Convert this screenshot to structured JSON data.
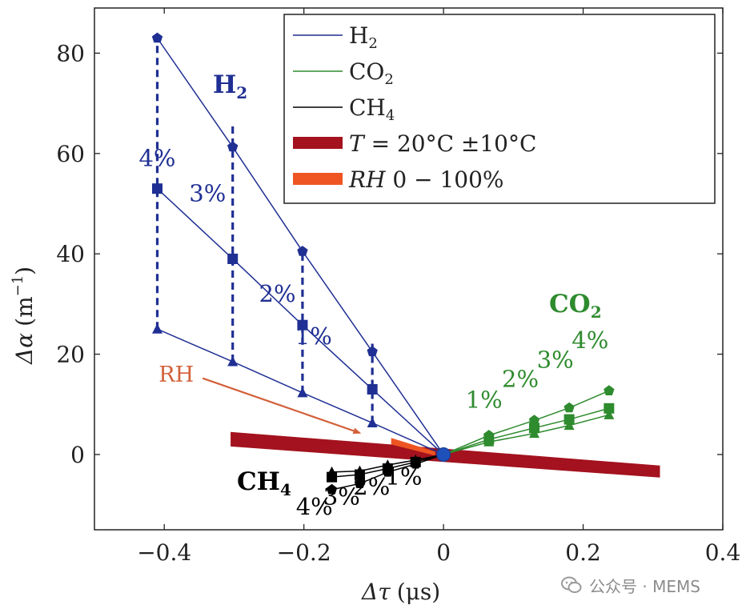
{
  "chart_data": {
    "type": "line",
    "xlabel": "Δτ (μs)",
    "ylabel": "Δα (m⁻¹)",
    "xlim": [
      -0.5,
      0.4
    ],
    "ylim": [
      -15,
      89
    ],
    "xticks": [
      -0.4,
      -0.2,
      0,
      0.2,
      0.4
    ],
    "xtick_labels": [
      "−0.4",
      "−0.2",
      "0",
      "0.2",
      "0.4"
    ],
    "yticks": [
      0,
      20,
      40,
      60,
      80
    ],
    "ytick_labels": [
      "0",
      "20",
      "40",
      "60",
      "80"
    ],
    "origin": [
      0,
      0
    ],
    "series": [
      {
        "name": "H₂",
        "color": "#1f2f93",
        "label": "H",
        "lines": [
          {
            "marker": "pentagon",
            "points": [
              [
                -0.41,
                83
              ],
              [
                -0.302,
                61.3
              ],
              [
                -0.202,
                40.5
              ],
              [
                -0.102,
                20.5
              ]
            ]
          },
          {
            "marker": "square",
            "points": [
              [
                -0.41,
                53
              ],
              [
                -0.302,
                39
              ],
              [
                -0.202,
                25.8
              ],
              [
                -0.102,
                13
              ]
            ]
          },
          {
            "marker": "triangle",
            "points": [
              [
                -0.41,
                25
              ],
              [
                -0.302,
                18.5
              ],
              [
                -0.202,
                12.3
              ],
              [
                -0.102,
                6.3
              ]
            ]
          }
        ],
        "dashed": [
          {
            "x": -0.41,
            "y0": 25,
            "y1": 83
          },
          {
            "x": -0.302,
            "y0": 18.5,
            "y1": 66
          },
          {
            "x": -0.202,
            "y0": 12.3,
            "y1": 41
          },
          {
            "x": -0.102,
            "y0": 6.3,
            "y1": 23
          }
        ],
        "percent_labels": [
          {
            "text": "4%",
            "x": -0.41,
            "y": 57.5
          },
          {
            "text": "3%",
            "x": -0.338,
            "y": 50.5
          },
          {
            "text": "2%",
            "x": -0.238,
            "y": 30.5
          },
          {
            "text": "1%",
            "x": -0.186,
            "y": 22
          }
        ]
      },
      {
        "name": "CO₂",
        "color": "#2e8b2e",
        "label": "CO",
        "lines": [
          {
            "marker": "pentagon",
            "points": [
              [
                0.065,
                3.8
              ],
              [
                0.13,
                6.8
              ],
              [
                0.18,
                9.3
              ],
              [
                0.237,
                12.7
              ]
            ]
          },
          {
            "marker": "square",
            "points": [
              [
                0.065,
                3.0
              ],
              [
                0.13,
                5.3
              ],
              [
                0.18,
                7.0
              ],
              [
                0.237,
                9.2
              ]
            ]
          },
          {
            "marker": "triangle",
            "points": [
              [
                0.065,
                2.5
              ],
              [
                0.13,
                4.2
              ],
              [
                0.18,
                5.8
              ],
              [
                0.237,
                7.9
              ]
            ]
          }
        ],
        "percent_labels": [
          {
            "text": "1%",
            "x": 0.058,
            "y": 9.3
          },
          {
            "text": "2%",
            "x": 0.11,
            "y": 13.5
          },
          {
            "text": "3%",
            "x": 0.16,
            "y": 17.3
          },
          {
            "text": "4%",
            "x": 0.21,
            "y": 21.2
          }
        ]
      },
      {
        "name": "CH₄",
        "color": "#000000",
        "label": "CH",
        "lines": [
          {
            "marker": "pentagon",
            "points": [
              [
                -0.16,
                -7
              ],
              [
                -0.12,
                -5.8
              ],
              [
                -0.08,
                -3.5
              ],
              [
                -0.04,
                -1.9
              ]
            ]
          },
          {
            "marker": "square",
            "points": [
              [
                -0.16,
                -4.5
              ],
              [
                -0.12,
                -4.0
              ],
              [
                -0.08,
                -2.8
              ],
              [
                -0.04,
                -1.5
              ]
            ]
          },
          {
            "marker": "triangle",
            "points": [
              [
                -0.16,
                -3.5
              ],
              [
                -0.12,
                -3.3
              ],
              [
                -0.08,
                -2.1
              ],
              [
                -0.04,
                -1.1
              ]
            ]
          }
        ],
        "percent_labels": [
          {
            "text": "4%",
            "x": -0.185,
            "y": -12
          },
          {
            "text": "3%",
            "x": -0.146,
            "y": -10
          },
          {
            "text": "2%",
            "x": -0.103,
            "y": -8
          },
          {
            "text": "1%",
            "x": -0.057,
            "y": -6
          }
        ]
      }
    ],
    "bands": [
      {
        "name": "T = 20°C ±10°C",
        "color": "#a3121e",
        "polygon": [
          [
            -0.305,
            4.5
          ],
          [
            0.31,
            -2.2
          ],
          [
            0.31,
            -4.6
          ],
          [
            -0.305,
            1.6
          ]
        ]
      },
      {
        "name": "RH 0 − 100%",
        "color": "#ee5522",
        "polygon": [
          [
            -0.075,
            3.3
          ],
          [
            -0.012,
            0.6
          ],
          [
            -0.012,
            -0.2
          ],
          [
            -0.075,
            2.0
          ]
        ]
      }
    ],
    "annotations": [
      {
        "text": "RH",
        "color": "#d2603a",
        "x": -0.408,
        "y": 14.5
      },
      {
        "arrow_from": [
          -0.345,
          15.2
        ],
        "arrow_to": [
          -0.12,
          4.3
        ],
        "color": "#d2603a"
      }
    ],
    "legend": {
      "position": "top-right",
      "entries": [
        {
          "label": "H",
          "sub": "2",
          "color": "#1f2f93",
          "kind": "line"
        },
        {
          "label": "CO",
          "sub": "2",
          "color": "#2e8b2e",
          "kind": "line"
        },
        {
          "label": "CH",
          "sub": "4",
          "color": "#000000",
          "kind": "line"
        },
        {
          "label": "T = 20°C ±10°C",
          "color": "#a3121e",
          "kind": "band"
        },
        {
          "label": "RH 0 − 100%",
          "color": "#ee5522",
          "kind": "band"
        }
      ]
    }
  },
  "series_labels": {
    "h2": {
      "main": "H",
      "sub": "2"
    },
    "co2": {
      "main": "CO",
      "sub": "2"
    },
    "ch4": {
      "main": "CH",
      "sub": "4"
    }
  },
  "axis_text": {
    "x_main": "Δτ",
    "x_unit": "(μs)",
    "y_main": "Δα",
    "y_unit": "(m",
    "y_exp": "−1",
    "y_close": ")"
  },
  "legend_text": {
    "h2": "H",
    "h2_sub": "2",
    "co2": "CO",
    "co2_sub": "2",
    "ch4": "CH",
    "ch4_sub": "4",
    "temp_t": "T",
    "temp_rest": " = 20°C ±10°C",
    "rh_rh": "RH",
    "rh_rest": " 0 − 100%"
  },
  "rh_annotation": "RH",
  "watermark": {
    "text": "公众号 · MEMS"
  }
}
